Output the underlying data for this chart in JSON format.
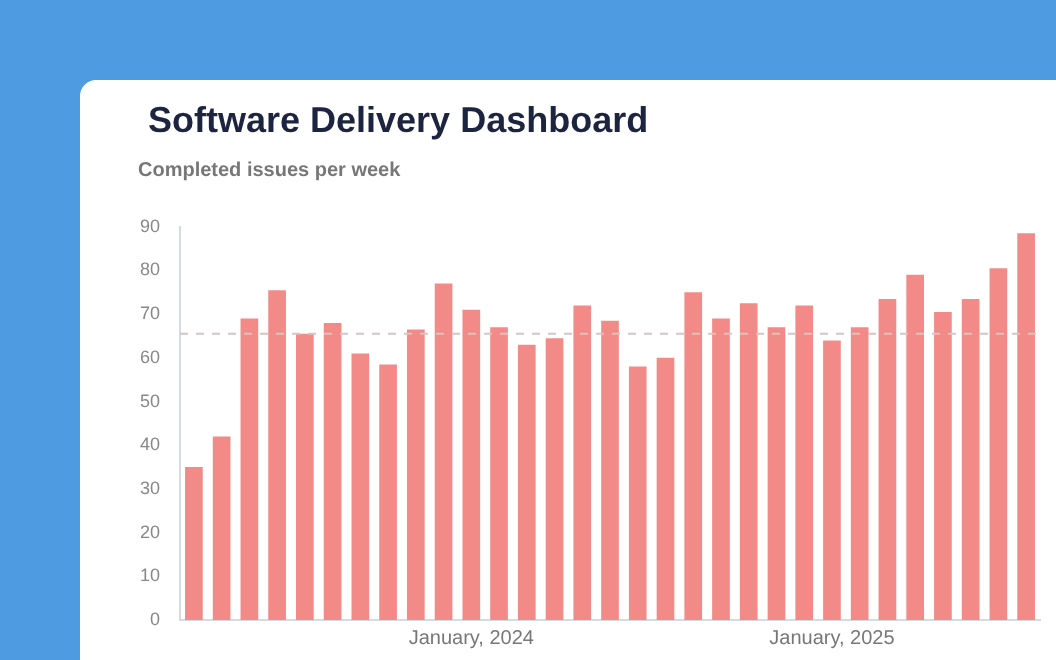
{
  "chart_data": {
    "type": "bar",
    "title": "Software Delivery Dashboard",
    "subtitle": "Completed issues per week",
    "categories": [
      null,
      null,
      null,
      null,
      null,
      null,
      null,
      null,
      null,
      null,
      "January, 2024",
      null,
      null,
      null,
      null,
      null,
      null,
      null,
      null,
      null,
      null,
      null,
      null,
      "January, 2025",
      null,
      null,
      null,
      null,
      null,
      null,
      null
    ],
    "values": [
      35,
      42,
      69,
      75.5,
      65.5,
      68,
      61,
      58.5,
      66.5,
      77,
      71,
      67,
      63,
      64.5,
      72,
      68.5,
      58,
      60,
      75,
      69,
      72.5,
      67,
      72,
      64,
      67,
      73.5,
      79,
      70.5,
      73.5,
      80.5,
      88.5
    ],
    "color": "#f28b87",
    "ylim": [
      0,
      90
    ],
    "yticks": [
      0,
      10,
      20,
      30,
      40,
      50,
      60,
      70,
      80,
      90
    ],
    "grid": false,
    "ref_lines": [
      {
        "axis": "y",
        "value": 65.5,
        "color": "#d9c4c4",
        "line_style": "dashed"
      }
    ]
  }
}
